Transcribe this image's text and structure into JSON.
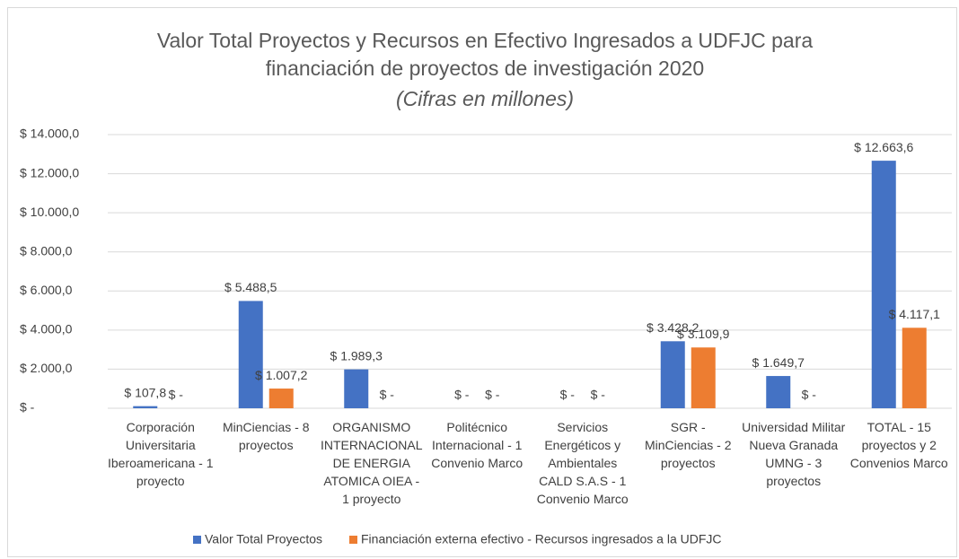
{
  "chart_data": {
    "type": "bar",
    "title": "Valor Total Proyectos y Recursos en Efectivo Ingresados a UDFJC para financiación de proyectos de investigación 2020",
    "subtitle": "(Cifras en millones)",
    "categories": [
      "Corporación Universitaria Iberoamericana - 1 proyecto",
      "MinCiencias - 8 proyectos",
      "ORGANISMO INTERNACIONAL DE ENERGIA ATOMICA OIEA - 1 proyecto",
      "Politécnico Internacional - 1 Convenio Marco",
      "Servicios Energéticos y Ambientales CALD S.A.S - 1 Convenio Marco",
      "SGR - MinCiencias - 2 proyectos",
      "Universidad Militar Nueva Granada UMNG - 3 proyectos",
      "TOTAL - 15 proyectos y 2 Convenios Marco"
    ],
    "series": [
      {
        "name": "Valor Total Proyectos",
        "color": "#4472c4",
        "values": [
          107.8,
          5488.5,
          1989.3,
          0,
          0,
          3428.2,
          1649.7,
          12663.6
        ],
        "value_labels": [
          "$ 107,8",
          "$ 5.488,5",
          "$ 1.989,3",
          "$ -",
          "$ -",
          "$ 3.428,2",
          "$ 1.649,7",
          "$ 12.663,6"
        ]
      },
      {
        "name": "Financiación externa efectivo - Recursos ingresados a la UDFJC",
        "color": "#ed7d31",
        "values": [
          0,
          1007.2,
          0,
          0,
          0,
          3109.9,
          0,
          4117.1
        ],
        "value_labels": [
          "$ -",
          "$ 1.007,2",
          "$ -",
          "$ -",
          "$ -",
          "$ 3.109,9",
          "$ -",
          "$ 4.117,1"
        ]
      }
    ],
    "ylim": [
      0,
      14000
    ],
    "yticks": [
      {
        "value": 0,
        "label": "$ -"
      },
      {
        "value": 2000,
        "label": "$ 2.000,0"
      },
      {
        "value": 4000,
        "label": "$ 4.000,0"
      },
      {
        "value": 6000,
        "label": "$ 6.000,0"
      },
      {
        "value": 8000,
        "label": "$ 8.000,0"
      },
      {
        "value": 10000,
        "label": "$ 10.000,0"
      },
      {
        "value": 12000,
        "label": "$ 12.000,0"
      },
      {
        "value": 14000,
        "label": "$ 14.000,0"
      }
    ],
    "grid": true,
    "legend": "bottom"
  }
}
